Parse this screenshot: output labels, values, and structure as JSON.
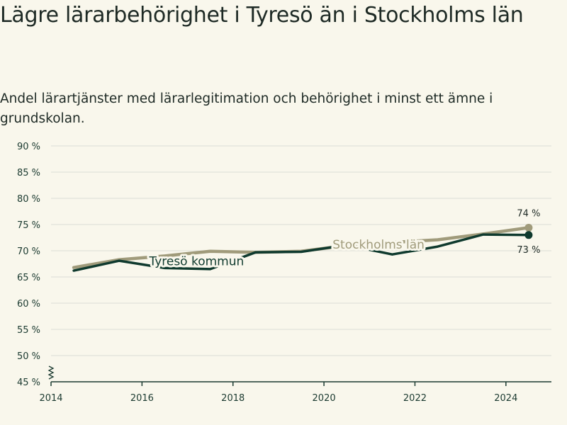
{
  "title": "Lägre lärarbehörighet i Tyresö än i Stockholms län",
  "subtitle": "Andel lärartjänster med lärarlegitimation och behörighet i minst ett ämne i grundskolan.",
  "colors": {
    "background": "#f9f7ec",
    "tyreso": "#0f3a2e",
    "stockholm": "#a09b7b",
    "grid": "#dcdcd6",
    "axis": "#1b3a30"
  },
  "chart_data": {
    "type": "line",
    "y_ticks": [
      "45 %",
      "50 %",
      "55 %",
      "60 %",
      "65 %",
      "70 %",
      "75 %",
      "80 %",
      "85 %",
      "90 %"
    ],
    "x_ticks": [
      "2014",
      "2016",
      "2018",
      "2020",
      "2022",
      "2024"
    ],
    "ylim": [
      45,
      90
    ],
    "xlim": [
      2014,
      2025
    ],
    "grid": true,
    "series": [
      {
        "name": "Stockholms län",
        "color": "#a09b7b",
        "x": [
          2014.5,
          2015.5,
          2016.5,
          2017.5,
          2018.5,
          2019.5,
          2020.5,
          2021.5,
          2022.5,
          2023.5,
          2024.5
        ],
        "values": [
          66.8,
          68.3,
          69.0,
          69.9,
          69.7,
          69.9,
          71.0,
          71.6,
          72.1,
          73.2,
          74.4
        ],
        "end_label": "74 %"
      },
      {
        "name": "Tyresö kommun",
        "color": "#0f3a2e",
        "x": [
          2014.5,
          2015.5,
          2016.5,
          2017.5,
          2018.5,
          2019.5,
          2020.5,
          2021.5,
          2022.5,
          2023.5,
          2024.5
        ],
        "values": [
          66.2,
          68.1,
          66.7,
          66.5,
          69.7,
          69.8,
          71.1,
          69.3,
          70.8,
          73.1,
          73.0
        ],
        "end_label": "73 %"
      }
    ]
  }
}
